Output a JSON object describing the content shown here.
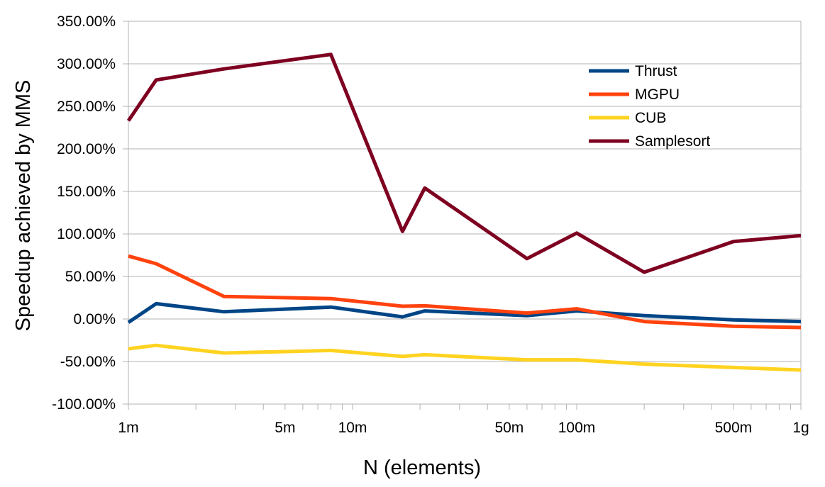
{
  "chart_data": {
    "type": "line",
    "title": "",
    "xlabel": "N (elements)",
    "ylabel": "Speedup achieved by MMS",
    "xscale": "log",
    "xlim": [
      1,
      1000
    ],
    "ylim": [
      -100,
      350
    ],
    "y_ticks": [
      -100,
      -50,
      0,
      50,
      100,
      150,
      200,
      250,
      300,
      350
    ],
    "y_tick_labels": [
      "-100.00%",
      "-50.00%",
      "0.00%",
      "50.00%",
      "100.00%",
      "150.00%",
      "200.00%",
      "250.00%",
      "300.00%",
      "350.00%"
    ],
    "x_major_ticks": [
      1,
      2,
      3,
      4,
      5,
      6,
      7,
      8,
      9,
      10,
      20,
      30,
      40,
      50,
      60,
      70,
      80,
      90,
      100,
      200,
      300,
      400,
      500,
      600,
      700,
      800,
      900,
      1000
    ],
    "x_labeled_ticks": [
      {
        "value": 1,
        "label": "1m"
      },
      {
        "value": 5,
        "label": "5m"
      },
      {
        "value": 10,
        "label": "10m"
      },
      {
        "value": 50,
        "label": "50m"
      },
      {
        "value": 100,
        "label": "100m"
      },
      {
        "value": 500,
        "label": "500m"
      },
      {
        "value": 1000,
        "label": "1g"
      }
    ],
    "grid": "horizontal",
    "legend_position": "top-right",
    "x": [
      1,
      1.33,
      2.67,
      8,
      16.7,
      21,
      60,
      100,
      200,
      500,
      1000
    ],
    "series": [
      {
        "name": "Thrust",
        "color": "#004586",
        "values": [
          -4,
          18,
          8.5,
          14,
          2.5,
          9.5,
          4,
          9.5,
          4,
          -1,
          -3
        ]
      },
      {
        "name": "MGPU",
        "color": "#ff420e",
        "values": [
          74,
          65,
          26.5,
          24,
          15,
          15.5,
          7,
          12,
          -3,
          -8.5,
          -10
        ]
      },
      {
        "name": "CUB",
        "color": "#ffd320",
        "values": [
          -35,
          -31,
          -40,
          -37,
          -44,
          -42,
          -48,
          -48,
          -53,
          -57,
          -60
        ]
      },
      {
        "name": "Samplesort",
        "color": "#7e0021",
        "values": [
          233,
          281,
          294,
          311,
          103,
          154,
          71,
          101,
          55,
          91,
          98
        ]
      }
    ]
  }
}
